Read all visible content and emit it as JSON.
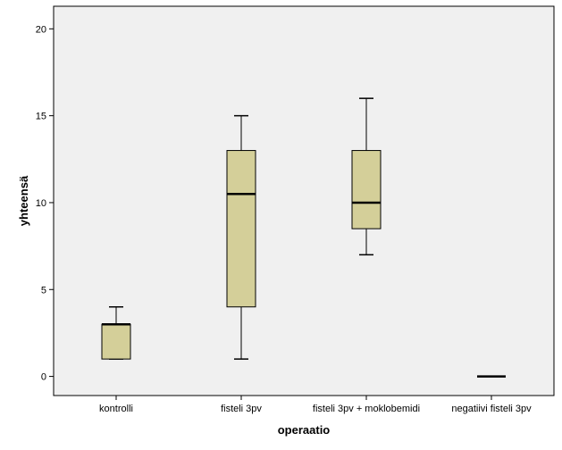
{
  "chart_data": {
    "type": "boxplot",
    "title": "",
    "xlabel": "operaatio",
    "ylabel": "yhteensä",
    "ylim": [
      -1.1,
      21.3
    ],
    "yticks": [
      0,
      5,
      10,
      15,
      20
    ],
    "grid": false,
    "categories": [
      "kontrolli",
      "fisteli 3pv",
      "fisteli 3pv + moklobemidi",
      "negatiivi fisteli 3pv"
    ],
    "boxes": [
      {
        "category": "kontrolli",
        "whisker_low": 1,
        "q1": 1,
        "median": 3,
        "q3": 3,
        "whisker_high": 4
      },
      {
        "category": "fisteli 3pv",
        "whisker_low": 1,
        "q1": 4,
        "median": 10.5,
        "q3": 13,
        "whisker_high": 15
      },
      {
        "category": "fisteli 3pv + moklobemidi",
        "whisker_low": 7,
        "q1": 8.5,
        "median": 10,
        "q3": 13,
        "whisker_high": 16
      },
      {
        "category": "negatiivi fisteli 3pv",
        "whisker_low": 0,
        "q1": 0,
        "median": 0,
        "q3": 0,
        "whisker_high": 0
      }
    ],
    "colors": {
      "plot_background": "#f0f0f0",
      "box_fill": "#d4cf99",
      "stroke": "#000000"
    }
  }
}
